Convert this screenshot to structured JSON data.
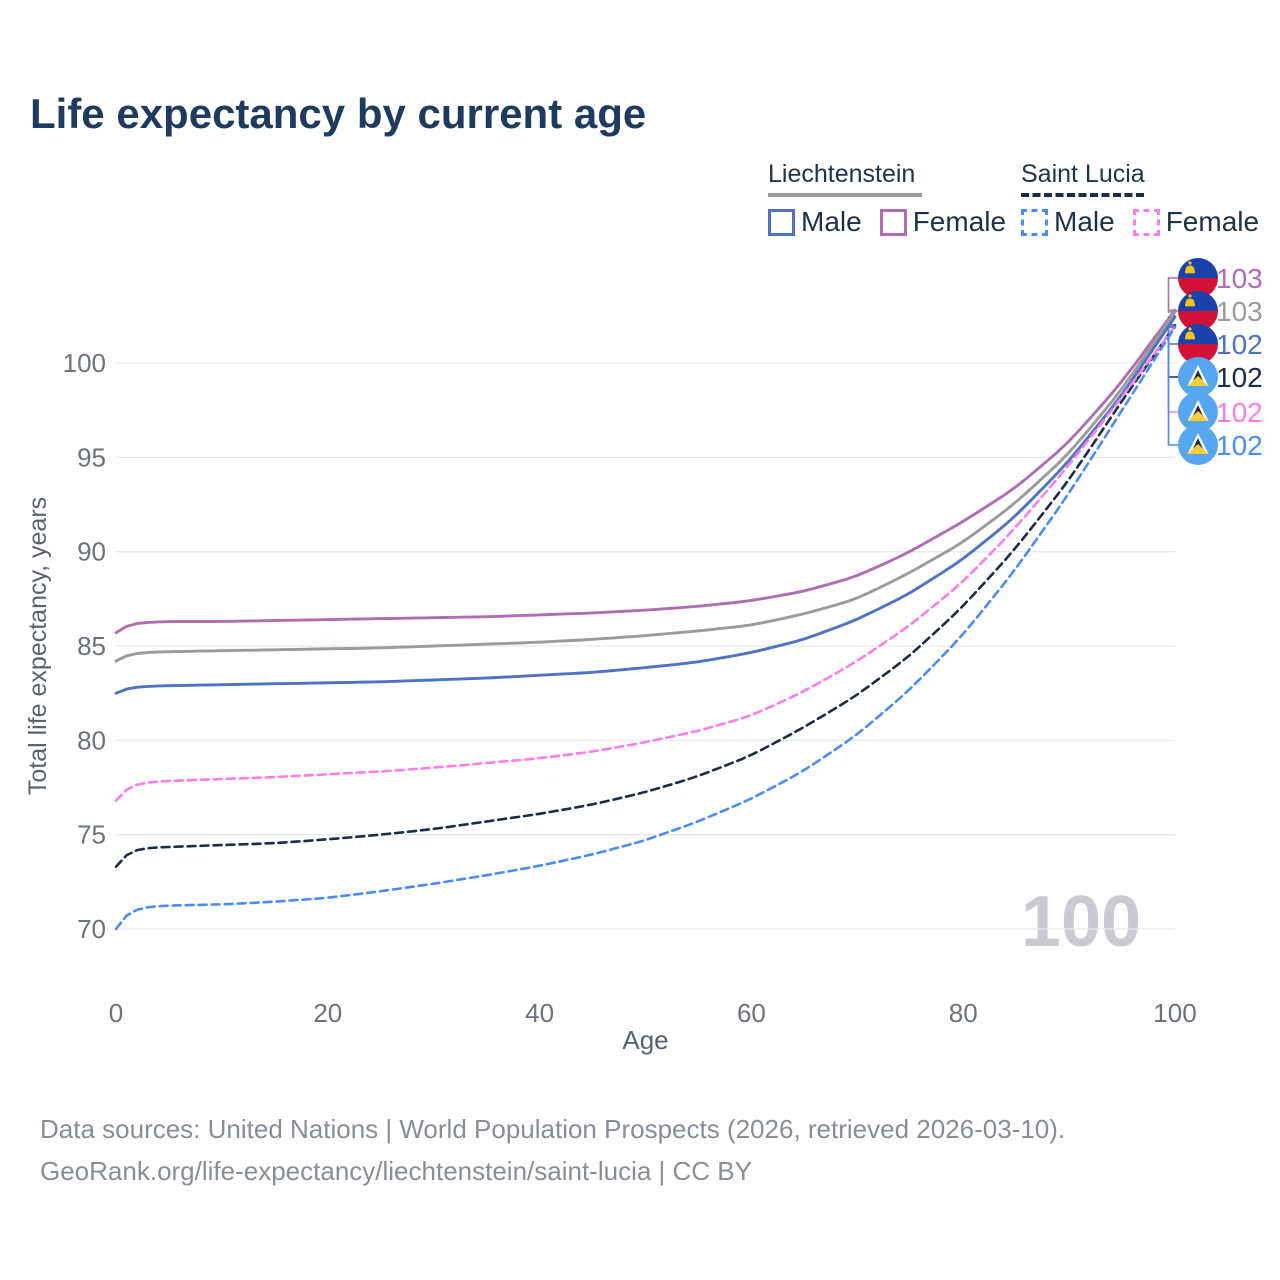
{
  "title": "Life expectancy by current age",
  "legend": {
    "groups": [
      {
        "name": "Liechtenstein",
        "underline_color": "#9a9a9a",
        "underline_style": "solid",
        "items": [
          {
            "label": "Male",
            "color": "#4e73c2",
            "dashed": false
          },
          {
            "label": "Female",
            "color": "#b16db4",
            "dashed": false
          }
        ]
      },
      {
        "name": "Saint Lucia",
        "underline_color": "#1d2b49",
        "underline_style": "dashed",
        "items": [
          {
            "label": "Male",
            "color": "#4a8cf6",
            "dashed": true
          },
          {
            "label": "Female",
            "color": "#fb7de9",
            "dashed": true
          }
        ]
      }
    ]
  },
  "chart_data": {
    "type": "line",
    "title": "Life expectancy by current age",
    "xlabel": "Age",
    "ylabel": "Total life expectancy, years",
    "xlim": [
      0,
      100
    ],
    "ylim": [
      68.5,
      104
    ],
    "x_ticks": [
      0,
      20,
      40,
      60,
      80,
      100
    ],
    "y_ticks": [
      70,
      75,
      80,
      85,
      90,
      95,
      100
    ],
    "grid": "horizontal",
    "age_indicator": "100",
    "gridline_color": "#e8e9ec",
    "tick_color": "#6d727b",
    "axis_title_color": "#5d636e",
    "watermark_color": "#c9cbd0",
    "series": [
      {
        "name": "Liechtenstein Female",
        "country": "Liechtenstein",
        "sex": "Female",
        "flag": "liechtenstein",
        "color": "#b16db4",
        "dashed": false,
        "end_label": "103",
        "points": [
          [
            0,
            85.7
          ],
          [
            1,
            86.25
          ],
          [
            5,
            86.3
          ],
          [
            10,
            86.3
          ],
          [
            15,
            86.35
          ],
          [
            20,
            86.4
          ],
          [
            25,
            86.45
          ],
          [
            30,
            86.5
          ],
          [
            35,
            86.55
          ],
          [
            40,
            86.65
          ],
          [
            45,
            86.75
          ],
          [
            50,
            86.9
          ],
          [
            55,
            87.1
          ],
          [
            60,
            87.4
          ],
          [
            65,
            87.9
          ],
          [
            70,
            88.7
          ],
          [
            75,
            90.0
          ],
          [
            80,
            91.6
          ],
          [
            85,
            93.4
          ],
          [
            90,
            95.8
          ],
          [
            95,
            99.0
          ],
          [
            100,
            102.8
          ]
        ]
      },
      {
        "name": "Liechtenstein Total",
        "country": "Liechtenstein",
        "sex": "Total",
        "flag": "liechtenstein",
        "color": "#9b9b9b",
        "dashed": false,
        "end_label": "103",
        "points": [
          [
            0,
            84.2
          ],
          [
            1,
            84.65
          ],
          [
            5,
            84.7
          ],
          [
            10,
            84.75
          ],
          [
            15,
            84.8
          ],
          [
            20,
            84.85
          ],
          [
            25,
            84.9
          ],
          [
            30,
            85.0
          ],
          [
            35,
            85.1
          ],
          [
            40,
            85.2
          ],
          [
            45,
            85.35
          ],
          [
            50,
            85.55
          ],
          [
            55,
            85.8
          ],
          [
            60,
            86.1
          ],
          [
            65,
            86.7
          ],
          [
            70,
            87.5
          ],
          [
            75,
            88.9
          ],
          [
            80,
            90.5
          ],
          [
            85,
            92.6
          ],
          [
            90,
            95.2
          ],
          [
            95,
            98.6
          ],
          [
            100,
            102.7
          ]
        ]
      },
      {
        "name": "Liechtenstein Male",
        "country": "Liechtenstein",
        "sex": "Male",
        "flag": "liechtenstein",
        "color": "#4e73c2",
        "dashed": false,
        "end_label": "102",
        "points": [
          [
            0,
            82.5
          ],
          [
            1,
            82.85
          ],
          [
            5,
            82.9
          ],
          [
            10,
            82.95
          ],
          [
            15,
            83.0
          ],
          [
            20,
            83.05
          ],
          [
            25,
            83.1
          ],
          [
            30,
            83.2
          ],
          [
            35,
            83.3
          ],
          [
            40,
            83.45
          ],
          [
            45,
            83.6
          ],
          [
            50,
            83.85
          ],
          [
            55,
            84.15
          ],
          [
            60,
            84.65
          ],
          [
            65,
            85.35
          ],
          [
            70,
            86.4
          ],
          [
            75,
            87.8
          ],
          [
            80,
            89.6
          ],
          [
            85,
            91.9
          ],
          [
            90,
            94.8
          ],
          [
            95,
            98.3
          ],
          [
            100,
            102.45
          ]
        ]
      },
      {
        "name": "Saint Lucia Total",
        "country": "Saint Lucia",
        "sex": "Total",
        "flag": "saint-lucia",
        "color": "#1d2b49",
        "dashed": true,
        "end_label": "102",
        "points": [
          [
            0,
            73.3
          ],
          [
            1,
            74.3
          ],
          [
            5,
            74.35
          ],
          [
            10,
            74.45
          ],
          [
            15,
            74.55
          ],
          [
            20,
            74.75
          ],
          [
            25,
            75.0
          ],
          [
            30,
            75.3
          ],
          [
            35,
            75.7
          ],
          [
            40,
            76.1
          ],
          [
            45,
            76.6
          ],
          [
            50,
            77.25
          ],
          [
            55,
            78.1
          ],
          [
            60,
            79.2
          ],
          [
            65,
            80.7
          ],
          [
            70,
            82.4
          ],
          [
            75,
            84.5
          ],
          [
            80,
            87.1
          ],
          [
            85,
            90.2
          ],
          [
            90,
            93.8
          ],
          [
            95,
            98.0
          ],
          [
            100,
            102.0
          ]
        ]
      },
      {
        "name": "Saint Lucia Female",
        "country": "Saint Lucia",
        "sex": "Female",
        "flag": "saint-lucia",
        "color": "#fb7de9",
        "dashed": true,
        "end_label": "102",
        "points": [
          [
            0,
            76.8
          ],
          [
            1,
            77.75
          ],
          [
            5,
            77.85
          ],
          [
            10,
            77.95
          ],
          [
            15,
            78.05
          ],
          [
            20,
            78.2
          ],
          [
            25,
            78.35
          ],
          [
            30,
            78.55
          ],
          [
            35,
            78.8
          ],
          [
            40,
            79.05
          ],
          [
            45,
            79.4
          ],
          [
            50,
            79.9
          ],
          [
            55,
            80.5
          ],
          [
            60,
            81.3
          ],
          [
            65,
            82.6
          ],
          [
            70,
            84.2
          ],
          [
            75,
            86.1
          ],
          [
            80,
            88.4
          ],
          [
            85,
            91.3
          ],
          [
            90,
            94.6
          ],
          [
            95,
            98.2
          ],
          [
            100,
            101.95
          ]
        ]
      },
      {
        "name": "Saint Lucia Male",
        "country": "Saint Lucia",
        "sex": "Male",
        "flag": "saint-lucia",
        "color": "#4a8cf6",
        "dashed": true,
        "end_label": "102",
        "points": [
          [
            0,
            70.0
          ],
          [
            1,
            71.15
          ],
          [
            5,
            71.25
          ],
          [
            10,
            71.3
          ],
          [
            15,
            71.45
          ],
          [
            20,
            71.65
          ],
          [
            25,
            72.0
          ],
          [
            30,
            72.4
          ],
          [
            35,
            72.85
          ],
          [
            40,
            73.35
          ],
          [
            45,
            73.95
          ],
          [
            50,
            74.7
          ],
          [
            55,
            75.7
          ],
          [
            60,
            76.9
          ],
          [
            65,
            78.4
          ],
          [
            70,
            80.3
          ],
          [
            75,
            82.7
          ],
          [
            80,
            85.6
          ],
          [
            85,
            89.1
          ],
          [
            90,
            93.1
          ],
          [
            95,
            97.5
          ],
          [
            100,
            101.9
          ]
        ]
      }
    ]
  },
  "footer": {
    "line1": "Data sources: United Nations | World Population Prospects (2026, retrieved 2026-03-10).",
    "line2": "GeoRank.org/life-expectancy/liechtenstein/saint-lucia | CC BY"
  }
}
